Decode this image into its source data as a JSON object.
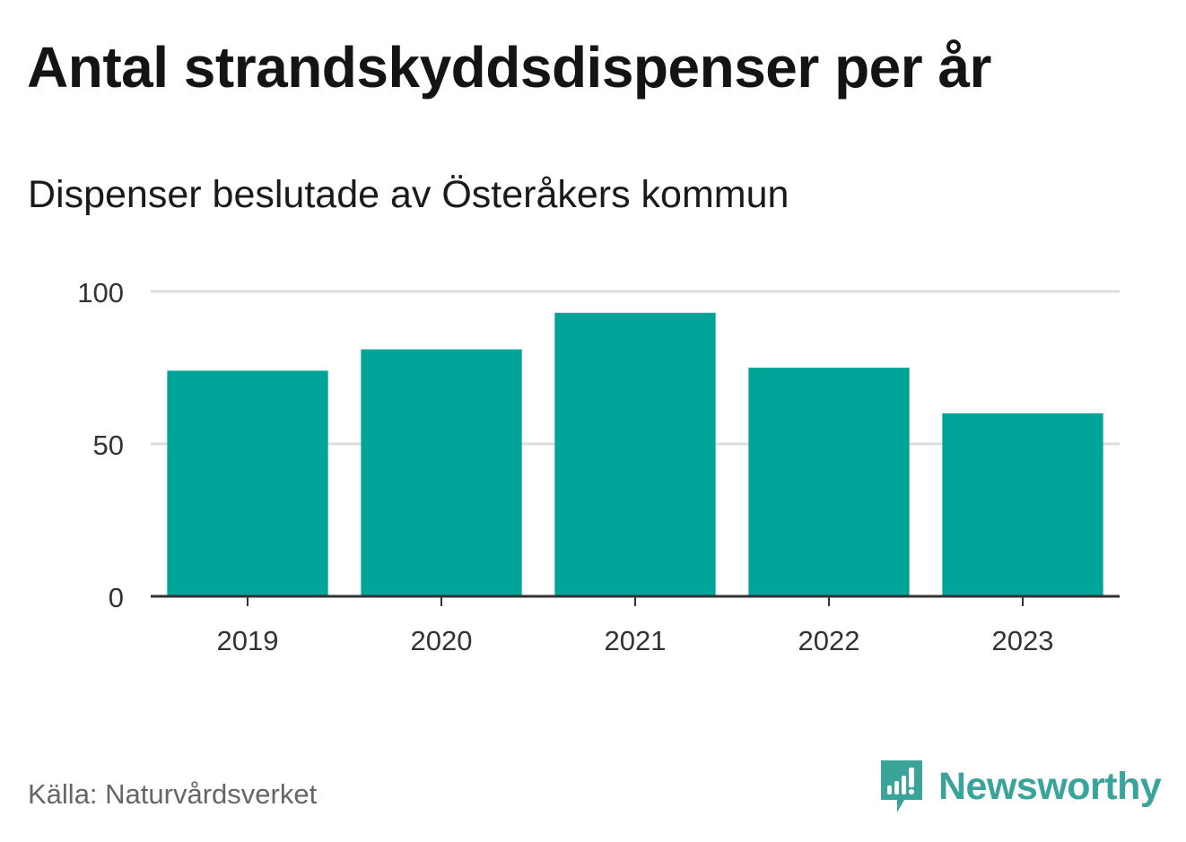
{
  "chart_data": {
    "type": "bar",
    "title": "Antal strandskyddsdispenser per år",
    "subtitle": "Dispenser beslutade av Österåkers kommun",
    "categories": [
      "2019",
      "2020",
      "2021",
      "2022",
      "2023"
    ],
    "values": [
      74,
      81,
      93,
      75,
      60
    ],
    "xlabel": "",
    "ylabel": "",
    "ylim": [
      0,
      100
    ],
    "yticks": [
      "0",
      "50",
      "100"
    ],
    "grid": true,
    "bar_color": "#00a499",
    "grid_color": "#dddddd",
    "axis_color": "#333333"
  },
  "footer": {
    "source": "Källa: Naturvårdsverket",
    "brand": "Newsworthy",
    "brand_icon": "newsworthy-logo-icon",
    "brand_color": "#3aa39a"
  }
}
